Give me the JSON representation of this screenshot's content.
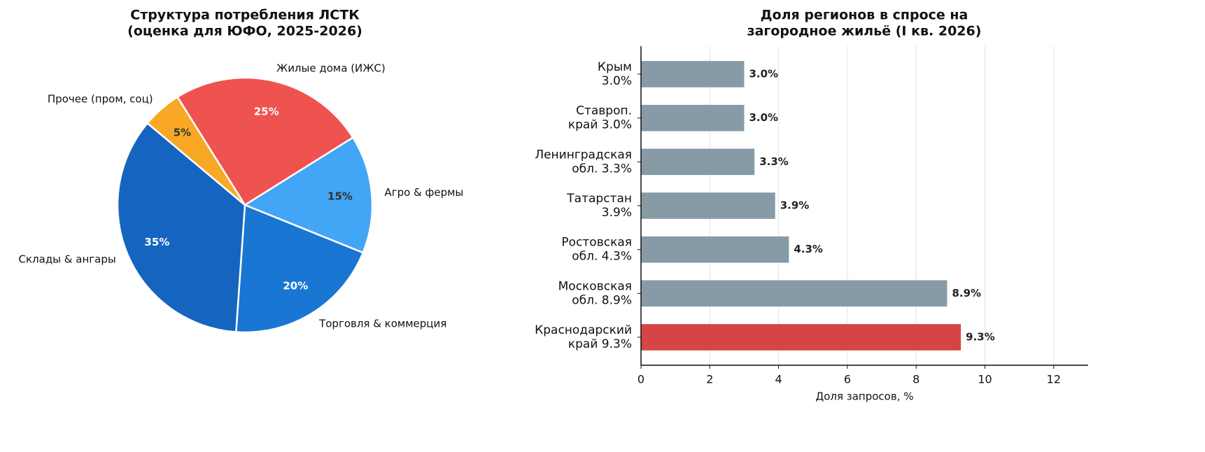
{
  "chart_data": [
    {
      "type": "pie",
      "title": "Структура потребления ЛСТК\n(оценка для ЮФО, 2025-2026)",
      "categories": [
        "Жилые дома (ИЖС)",
        "Агро & фермы",
        "Торговля & коммерция",
        "Склады & ангары",
        "Прочее (пром, соц)"
      ],
      "values": [
        25,
        15,
        20,
        35,
        5
      ],
      "value_labels": [
        "25%",
        "15%",
        "20%",
        "35%",
        "5%"
      ],
      "colors": [
        "#ef5350",
        "#42a5f5",
        "#1976d2",
        "#1565c0",
        "#f9a825"
      ]
    },
    {
      "type": "barh",
      "title": "Доля регионов в спросе на\nзагородное жильё (I кв. 2026)",
      "categories": [
        "Краснодарский\nкрай  9.3%",
        "Московская\nобл.  8.9%",
        "Ростовская\nобл.  4.3%",
        "Татарстан\n3.9%",
        "Ленинградская\nобл.  3.3%",
        "Ставроп.\nкрай  3.0%",
        "Крым\n3.0%"
      ],
      "values": [
        9.3,
        8.9,
        4.3,
        3.9,
        3.3,
        3.0,
        3.0
      ],
      "value_labels": [
        "9.3%",
        "8.9%",
        "4.3%",
        "3.9%",
        "3.3%",
        "3.0%",
        "3.0%"
      ],
      "colors": [
        "#d64545",
        "#869ba5",
        "#869ba5",
        "#869ba5",
        "#869ba5",
        "#869ba5",
        "#869ba5"
      ],
      "xlabel": "Доля запросов, %",
      "xlim": [
        0,
        13
      ],
      "xticks": [
        0,
        2,
        4,
        6,
        8,
        10,
        12
      ],
      "grid": true
    }
  ]
}
